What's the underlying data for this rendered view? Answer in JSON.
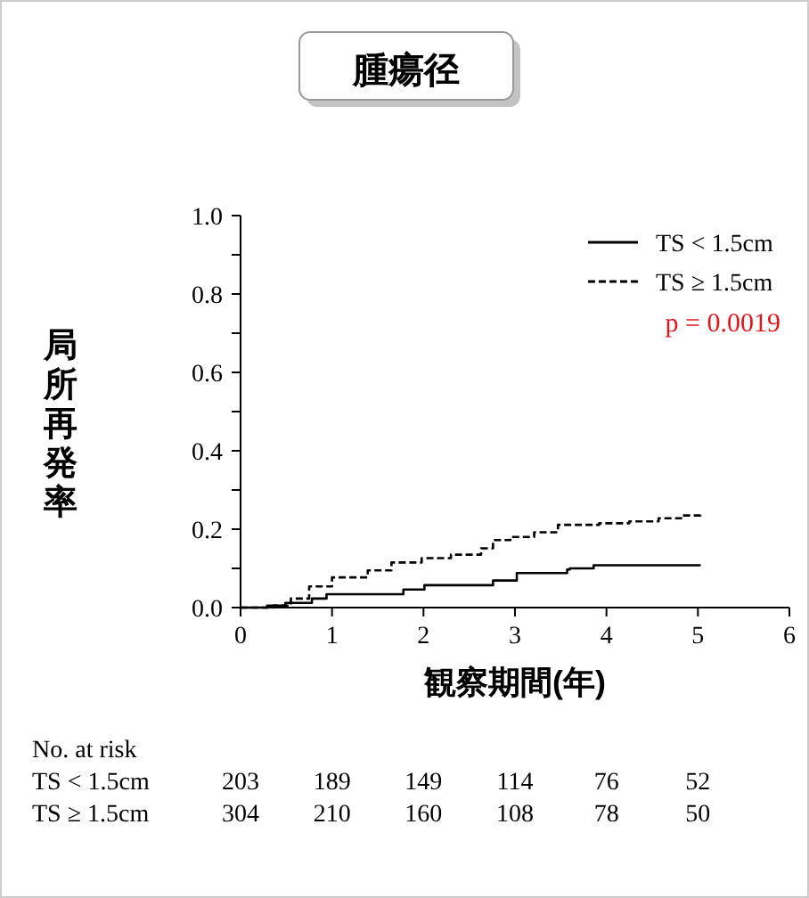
{
  "chart_data": {
    "type": "step",
    "title": "腫瘍径",
    "xlabel": "観察期間(年)",
    "ylabel": "局所再発率",
    "xlim": [
      0,
      6
    ],
    "xticks": [
      0,
      1,
      2,
      3,
      4,
      5,
      6
    ],
    "ylim": [
      0,
      1
    ],
    "yticks": [
      {
        "value": 0,
        "label": "0.0"
      },
      {
        "value": 0.1,
        "label": null
      },
      0.2,
      {
        "value": 0.3,
        "label": null
      },
      0.4,
      {
        "value": 0.5,
        "label": null
      },
      0.6,
      {
        "value": 0.7,
        "label": null
      },
      0.8,
      {
        "value": 0.9,
        "label": null
      },
      {
        "value": 1,
        "label": "1.0"
      }
    ],
    "legend": "top right",
    "grid": false,
    "series": [
      {
        "name": "TS < 1.5cm",
        "color": "#000000",
        "line_style": "solid",
        "x": [
          0,
          0.29,
          0.49,
          0.78,
          0.94,
          1.33,
          1.78,
          2.01,
          2.76,
          3.02,
          3.57,
          3.6,
          3.86,
          5.03
        ],
        "values": [
          0,
          0.005,
          0.012,
          0.023,
          0.034,
          0.034,
          0.046,
          0.057,
          0.069,
          0.088,
          0.097,
          0.1,
          0.108,
          0.108
        ]
      },
      {
        "name": "TS ≥ 1.5cm",
        "color": "#000000",
        "line_style": "dashed",
        "x": [
          0,
          0.36,
          0.55,
          0.75,
          1.0,
          1.39,
          1.65,
          1.98,
          2.3,
          2.63,
          2.76,
          2.95,
          3.21,
          3.47,
          3.92,
          4.25,
          4.57,
          4.83,
          5.03
        ],
        "values": [
          0,
          0.005,
          0.023,
          0.054,
          0.077,
          0.095,
          0.115,
          0.126,
          0.135,
          0.151,
          0.172,
          0.18,
          0.192,
          0.211,
          0.215,
          0.22,
          0.228,
          0.235,
          0.242
        ]
      }
    ],
    "annotations": [
      "p = 0.0019",
      "No. at risk",
      "TS < 1.5cm",
      "203",
      "189",
      "149",
      "114",
      "76",
      "52",
      "TS ≥ 1.5cm",
      "304",
      "210",
      "160",
      "108",
      "78",
      "50"
    ]
  }
}
